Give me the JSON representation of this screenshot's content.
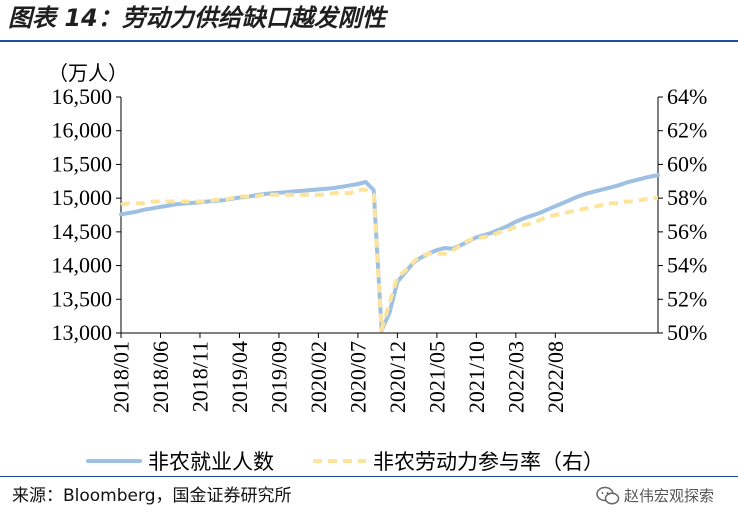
{
  "figure": {
    "title": "图表 14：劳动力供给缺口越发刚性",
    "source": "来源：Bloomberg，国金证券研究所",
    "watermark": "赵伟宏观探索"
  },
  "colors": {
    "employment": "#9dc0e3",
    "participation": "#fde49c",
    "rule": "#1f4e9a"
  },
  "chart_data": {
    "type": "line",
    "y_unit_label": "（万人）",
    "x_ticks": [
      "2018/01",
      "2018/06",
      "2018/11",
      "2019/04",
      "2019/09",
      "2020/02",
      "2020/07",
      "2020/12",
      "2021/05",
      "2021/10",
      "2022/03",
      "2022/08"
    ],
    "y_left": {
      "min": 13000,
      "max": 16500,
      "ticks": [
        "13,000",
        "13,500",
        "14,000",
        "14,500",
        "15,000",
        "15,500",
        "16,000",
        "16,500"
      ]
    },
    "y_right": {
      "min": 50,
      "max": 64,
      "ticks": [
        "50%",
        "52%",
        "54%",
        "56%",
        "58%",
        "60%",
        "62%",
        "64%"
      ]
    },
    "legend_position": "bottom",
    "series": [
      {
        "name": "非农就业人数",
        "axis": "left",
        "style": "solid",
        "start": "2018/01",
        "values": [
          14760,
          14780,
          14800,
          14830,
          14850,
          14870,
          14890,
          14910,
          14920,
          14930,
          14940,
          14950,
          14960,
          14970,
          14990,
          15010,
          15020,
          15040,
          15060,
          15070,
          15080,
          15090,
          15100,
          15110,
          15120,
          15130,
          15140,
          15150,
          15170,
          15190,
          15210,
          15240,
          15120,
          13040,
          13300,
          13760,
          13900,
          14040,
          14120,
          14180,
          14230,
          14260,
          14250,
          14300,
          14360,
          14420,
          14450,
          14490,
          14540,
          14590,
          14650,
          14700,
          14740,
          14780,
          14830,
          14880,
          14930,
          14980,
          15030,
          15070,
          15100,
          15130,
          15160,
          15190,
          15230,
          15260,
          15290,
          15320,
          15340
        ]
      },
      {
        "name": "非农劳动力参与率（右）",
        "axis": "right",
        "style": "dashed",
        "start": "2018/01",
        "values": [
          57.6,
          57.7,
          57.7,
          57.7,
          57.8,
          57.8,
          57.8,
          57.8,
          57.8,
          57.8,
          57.8,
          57.8,
          57.9,
          57.9,
          58.0,
          58.1,
          58.1,
          58.1,
          58.2,
          58.2,
          58.2,
          58.2,
          58.2,
          58.2,
          58.2,
          58.2,
          58.2,
          58.3,
          58.3,
          58.3,
          58.5,
          58.5,
          58.2,
          50.2,
          51.8,
          53.3,
          53.7,
          54.2,
          54.6,
          54.7,
          54.7,
          54.7,
          54.9,
          55.2,
          55.5,
          55.6,
          55.7,
          55.8,
          56.0,
          56.1,
          56.3,
          56.4,
          56.5,
          56.7,
          56.9,
          57.0,
          57.1,
          57.2,
          57.3,
          57.4,
          57.5,
          57.6,
          57.7,
          57.7,
          57.8,
          57.8,
          57.9,
          58.0,
          58.0
        ]
      }
    ]
  }
}
